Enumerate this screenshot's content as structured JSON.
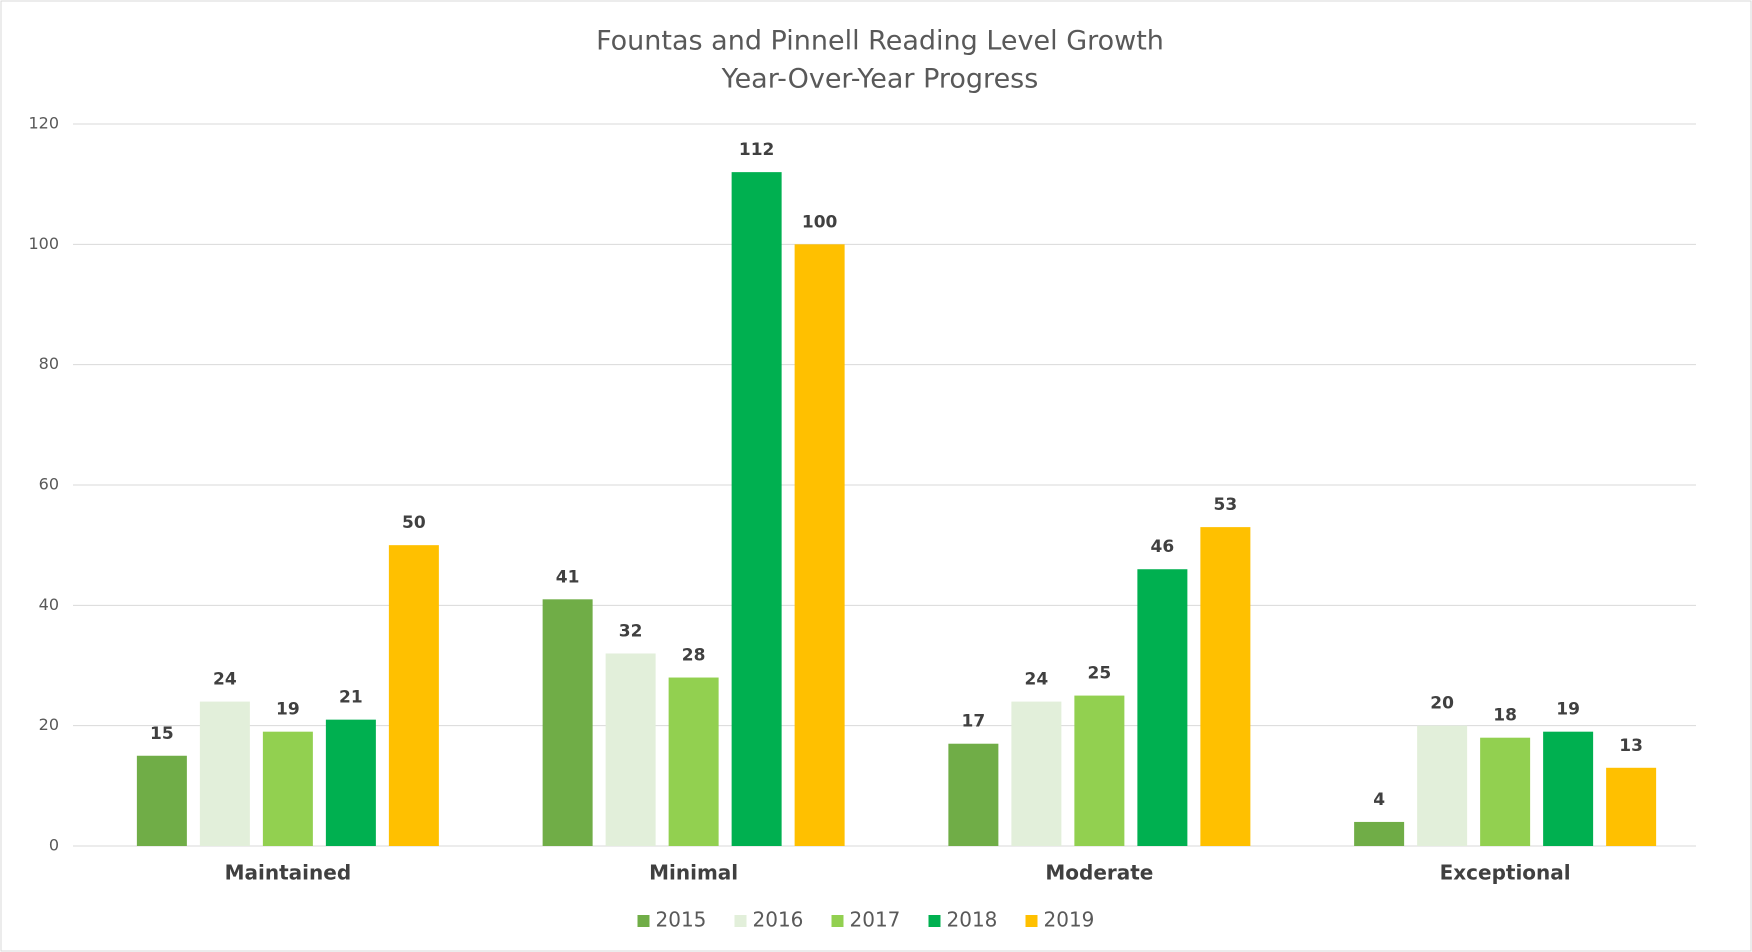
{
  "chart_data": {
    "type": "bar",
    "title": "Fountas and Pinnell Reading Level Growth",
    "subtitle": "Year-Over-Year Progress",
    "categories": [
      "Maintained",
      "Minimal",
      "Moderate",
      "Exceptional"
    ],
    "series": [
      {
        "name": "2015",
        "color": "#70ad47",
        "values": [
          15,
          41,
          17,
          4
        ]
      },
      {
        "name": "2016",
        "color": "#e2efda",
        "values": [
          24,
          32,
          24,
          20
        ]
      },
      {
        "name": "2017",
        "color": "#92d050",
        "values": [
          19,
          28,
          25,
          18
        ]
      },
      {
        "name": "2018",
        "color": "#00b050",
        "values": [
          21,
          112,
          46,
          19
        ]
      },
      {
        "name": "2019",
        "color": "#ffc000",
        "values": [
          50,
          100,
          53,
          13
        ]
      }
    ],
    "ylim": [
      0,
      120
    ],
    "yticks": [
      0,
      20,
      40,
      60,
      80,
      100,
      120
    ],
    "grid": true,
    "legend": "bottom"
  }
}
